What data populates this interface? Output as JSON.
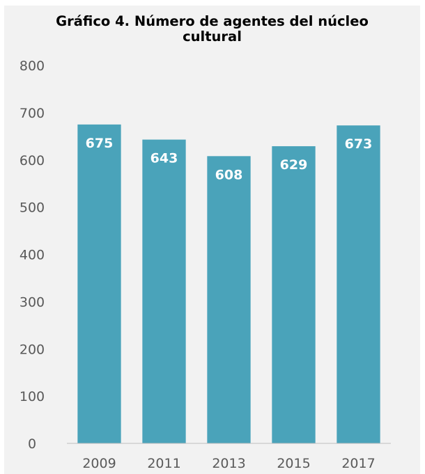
{
  "chart_data": {
    "type": "bar",
    "title": "Gráfico 4. Número de agentes del núcleo cultural",
    "title_lines": [
      "Gráfico 4. Número de agentes del núcleo",
      "cultural"
    ],
    "categories": [
      "2009",
      "2011",
      "2013",
      "2015",
      "2017"
    ],
    "values": [
      675,
      643,
      608,
      629,
      673
    ],
    "data_labels": [
      "675",
      "643",
      "608",
      "629",
      "673"
    ],
    "xlabel": "",
    "ylabel": "",
    "ylim": [
      0,
      800
    ],
    "yticks": [
      "0",
      "100",
      "200",
      "300",
      "400",
      "500",
      "600",
      "700",
      "800"
    ],
    "grid": false,
    "legend": "none",
    "colors": {
      "bar": "#4aa3ba",
      "background": "#f2f2f2",
      "axis": "#bfbfbf",
      "title": "#000000",
      "tick_text": "#595959",
      "label_text": "#ffffff"
    }
  }
}
